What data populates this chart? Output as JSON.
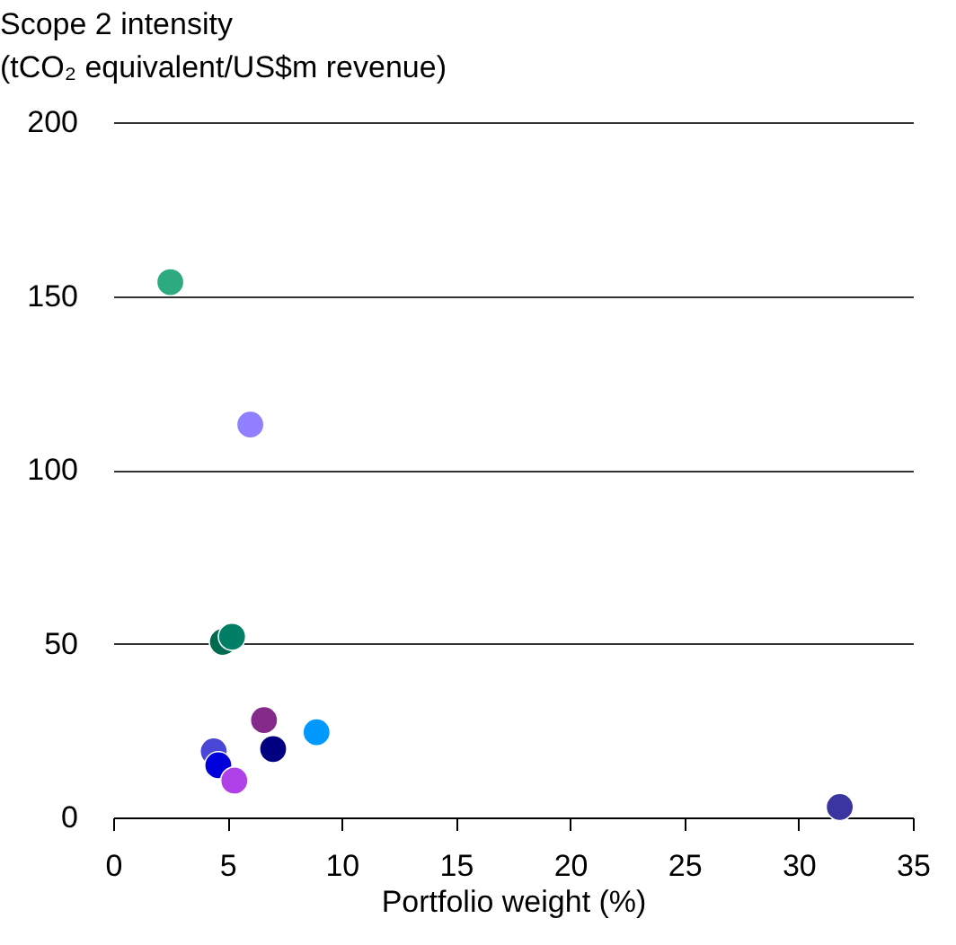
{
  "chart_data": {
    "type": "scatter",
    "title": [
      "Scope 2 intensity",
      "(tCO₂ equivalent/US$m revenue)"
    ],
    "xlabel": "Portfolio weight (%)",
    "x": [
      2.5,
      6.0,
      4.8,
      5.2,
      6.6,
      7.0,
      8.9,
      4.4,
      4.6,
      5.3,
      31.8
    ],
    "values": [
      154,
      113,
      50.5,
      52,
      28,
      19.7,
      24.5,
      19,
      15,
      10.6,
      3
    ],
    "colors": [
      "#2eaa80",
      "#9080ff",
      "#006a4e",
      "#007f66",
      "#832a8a",
      "#000080",
      "#0099ff",
      "#4b47d6",
      "#0000dd",
      "#b040e8",
      "#3a35a0"
    ],
    "xlim": [
      0,
      35
    ],
    "xticks": [
      0,
      5,
      10,
      15,
      20,
      25,
      30,
      35
    ],
    "ylim": [
      0,
      200
    ],
    "yticks": [
      0,
      50,
      100,
      150,
      200
    ],
    "grid": "y",
    "marker": "circle",
    "legend": false
  }
}
